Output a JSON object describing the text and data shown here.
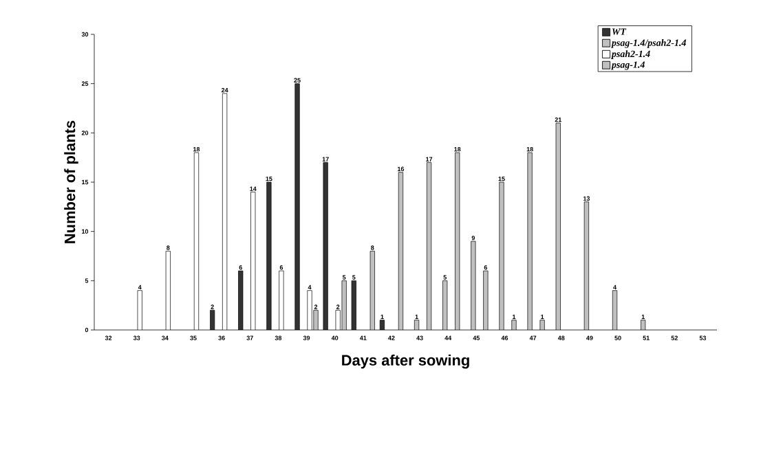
{
  "chart_data": {
    "type": "bar",
    "xlabel": "Days after sowing",
    "ylabel": "Number of plants",
    "categories": [
      "32",
      "33",
      "34",
      "35",
      "36",
      "37",
      "38",
      "39",
      "40",
      "41",
      "42",
      "43",
      "44",
      "45",
      "46",
      "47",
      "48",
      "49",
      "50",
      "51",
      "52",
      "53"
    ],
    "series": [
      {
        "name": "WT",
        "color": "#333333",
        "values": [
          null,
          null,
          null,
          null,
          2,
          6,
          15,
          25,
          17,
          5,
          1,
          null,
          null,
          null,
          null,
          null,
          null,
          null,
          null,
          null,
          null,
          null
        ]
      },
      {
        "name": "psag-1.4/psah2-1.4",
        "color": "#c0c0c0",
        "values": [
          null,
          null,
          null,
          null,
          null,
          null,
          null,
          null,
          null,
          null,
          null,
          1,
          5,
          9,
          15,
          18,
          21,
          13,
          4,
          1,
          null,
          null
        ]
      },
      {
        "name": "psah2-1.4",
        "color": "#ffffff",
        "values": [
          null,
          4,
          8,
          18,
          24,
          14,
          6,
          4,
          2,
          null,
          null,
          null,
          null,
          null,
          null,
          null,
          null,
          null,
          null,
          null,
          null,
          null
        ]
      },
      {
        "name": "psag-1.4",
        "color": "#c0c0c0",
        "values": [
          null,
          null,
          null,
          null,
          null,
          null,
          null,
          2,
          5,
          8,
          16,
          17,
          18,
          6,
          1,
          1,
          null,
          null,
          null,
          null,
          null,
          null
        ]
      }
    ],
    "ylim": [
      0,
      30
    ],
    "yticks": [
      0,
      5,
      10,
      15,
      20,
      25,
      30
    ],
    "data_labels": true,
    "legend": "top right",
    "grid": false
  }
}
